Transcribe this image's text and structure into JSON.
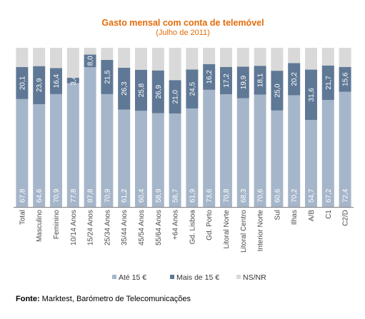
{
  "chart_data": {
    "type": "bar",
    "stacked": true,
    "percent_stacked": true,
    "title": "Gasto mensal com conta de telemóvel",
    "subtitle": "(Julho de 2011)",
    "categories": [
      "Total",
      "Masculino",
      "Feminino",
      "10/14 Anos",
      "15/24 Anos",
      "25/34 Anos",
      "35/44 Anos",
      "45/54 Anos",
      "55/64 Anos",
      "+64 Anos",
      "Gd. Lisboa",
      "Gd. Porto",
      "Litoral Norte",
      "Litoral Centro",
      "Interior Norte",
      "Sul",
      "Ilhas",
      "A/B",
      "C1",
      "C2/D"
    ],
    "series": [
      {
        "name": "Até 15 €",
        "color": "#a6b6ca",
        "values": [
          67.8,
          64.6,
          70.9,
          77.8,
          87.8,
          70.9,
          61.2,
          60.4,
          58.9,
          58.7,
          61.9,
          73.6,
          70.8,
          68.3,
          70.6,
          60.6,
          70.2,
          54.7,
          67.2,
          72.4
        ]
      },
      {
        "name": "Mais de 15 €",
        "color": "#5f7896",
        "values": [
          20.1,
          23.9,
          16.4,
          3.4,
          8.0,
          21.5,
          26.3,
          25.8,
          26.9,
          21.0,
          24.5,
          16.2,
          17.2,
          19.9,
          18.1,
          25.0,
          20.2,
          31.6,
          21.7,
          15.6
        ]
      },
      {
        "name": "NS/NR",
        "color": "#d9d9d9",
        "values": [
          12.1,
          11.5,
          12.7,
          18.8,
          4.2,
          7.6,
          12.5,
          13.8,
          14.2,
          20.3,
          13.6,
          10.2,
          12.0,
          11.8,
          11.3,
          14.4,
          9.6,
          13.7,
          11.1,
          12.0
        ]
      }
    ],
    "data_labels": {
      "series_0": [
        "67,8",
        "64,6",
        "70,9",
        "77,8",
        "87,8",
        "70,9",
        "61,2",
        "60,4",
        "58,9",
        "58,7",
        "61,9",
        "73,6",
        "70,8",
        "68,3",
        "70,6",
        "60,6",
        "70,2",
        "54,7",
        "67,2",
        "72,4"
      ],
      "series_1": [
        "20,1",
        "23,9",
        "16,4",
        "3,4",
        "8,0",
        "21,5",
        "26,3",
        "25,8",
        "26,9",
        "21,0",
        "24,5",
        "16,2",
        "17,2",
        "19,9",
        "18,1",
        "25,0",
        "20,2",
        "31,6",
        "21,7",
        "15,6"
      ]
    },
    "ylim": [
      0,
      100
    ],
    "grid": false,
    "legend_position": "bottom"
  },
  "source": {
    "label": "Fonte:",
    "text": "Marktest, Barómetro de Telecomunicações"
  }
}
